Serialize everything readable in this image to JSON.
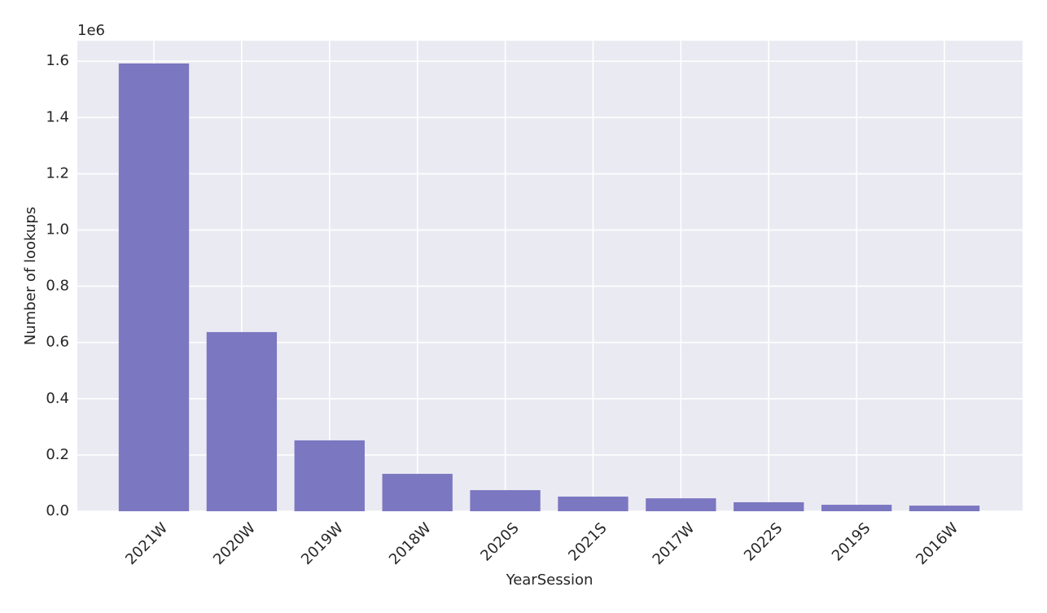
{
  "chart_data": {
    "type": "bar",
    "x_label": "YearSession",
    "y_label": "Number of lookups",
    "offset_label": "1e6",
    "categories": [
      "2021W",
      "2020W",
      "2019W",
      "2018W",
      "2020S",
      "2021S",
      "2017W",
      "2022S",
      "2019S",
      "2016W"
    ],
    "values": [
      1.592,
      0.637,
      0.252,
      0.133,
      0.075,
      0.052,
      0.046,
      0.032,
      0.023,
      0.02
    ],
    "color": "#7b77c1",
    "ylim": [
      0,
      1.673
    ],
    "yticks": [
      {
        "value": 0,
        "label": "0.0"
      },
      {
        "value": 0.2,
        "label": "0.2"
      },
      {
        "value": 0.4,
        "label": "0.4"
      },
      {
        "value": 0.6,
        "label": "0.6"
      },
      {
        "value": 0.8,
        "label": "0.8"
      },
      {
        "value": 1.0,
        "label": "1.0"
      },
      {
        "value": 1.2,
        "label": "1.2"
      },
      {
        "value": 1.4,
        "label": "1.4"
      },
      {
        "value": 1.6,
        "label": "1.6"
      }
    ],
    "grid": true
  }
}
